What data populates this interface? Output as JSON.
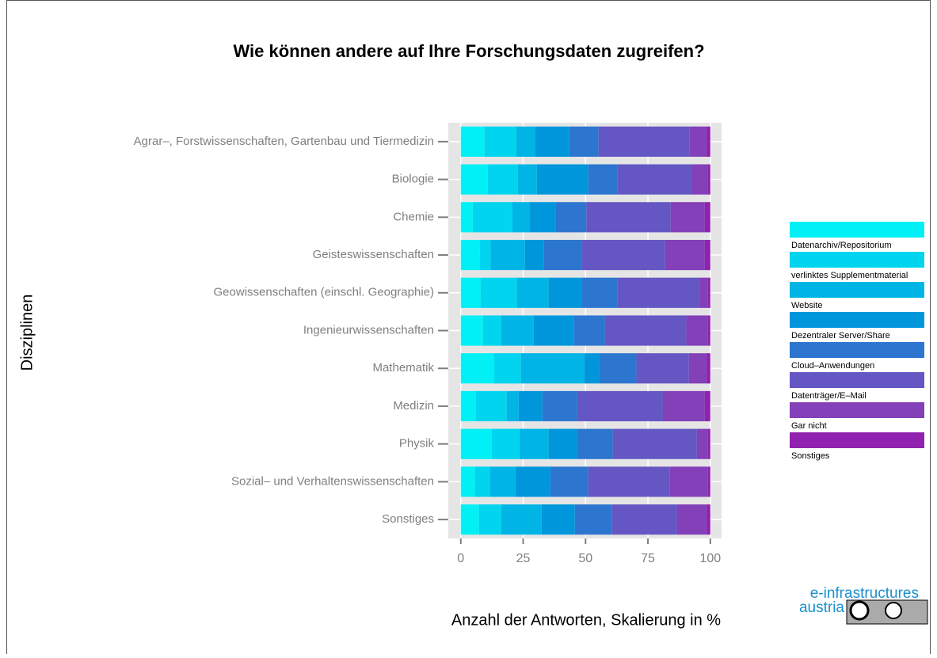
{
  "chart_data": {
    "type": "stacked_bar_horizontal",
    "title": "Wie können andere auf Ihre Forschungsdaten zugreifen?",
    "x_label": "Anzahl der Antworten, Skalierung in %",
    "y_label": "Disziplinen",
    "categories": [
      "Agrar–, Forstwissenschaften, Gartenbau und Tiermedizin",
      "Biologie",
      "Chemie",
      "Geisteswissenschaften",
      "Geowissenschaften (einschl. Geographie)",
      "Ingenieurwissenschaften",
      "Mathematik",
      "Medizin",
      "Physik",
      "Sozial– und Verhaltenswissenschaften",
      "Sonstiges"
    ],
    "series": [
      {
        "name": "Datenarchiv/Repositorium",
        "color": "#00f0f5",
        "values": [
          9.5,
          10.8,
          4.8,
          7.6,
          7.9,
          8.9,
          13.3,
          6.0,
          12.4,
          5.7,
          7.3
        ]
      },
      {
        "name": "verlinktes Supplementmaterial",
        "color": "#00d4ef",
        "values": [
          12.7,
          12.1,
          15.9,
          4.4,
          14.6,
          7.3,
          10.8,
          12.4,
          11.1,
          6.0,
          8.9
        ]
      },
      {
        "name": "Website",
        "color": "#00b5e5",
        "values": [
          7.6,
          7.6,
          7.0,
          13.7,
          12.7,
          13.0,
          25.4,
          4.8,
          11.7,
          10.2,
          16.2
        ]
      },
      {
        "name": "Dezentraler Server/Share",
        "color": "#0096dc",
        "values": [
          13.7,
          20.6,
          10.2,
          7.6,
          13.3,
          16.2,
          6.0,
          9.5,
          11.4,
          14.0,
          13.3
        ]
      },
      {
        "name": "Cloud–Anwendungen",
        "color": "#2c76d0",
        "values": [
          11.7,
          11.7,
          12.4,
          15.2,
          14.3,
          12.4,
          14.9,
          14.0,
          14.3,
          15.2,
          14.9
        ]
      },
      {
        "name": "Datenträger/E–Mail",
        "color": "#6457c4",
        "values": [
          36.5,
          29.8,
          33.8,
          33.4,
          32.7,
          32.6,
          21.0,
          34.3,
          33.7,
          32.7,
          26.1
        ]
      },
      {
        "name": "Gar nicht",
        "color": "#8340b8",
        "values": [
          6.7,
          6.3,
          13.7,
          15.9,
          3.5,
          8.6,
          7.0,
          16.8,
          4.4,
          15.2,
          11.7
        ]
      },
      {
        "name": "Sonstiges",
        "color": "#9122b0",
        "values": [
          1.6,
          1.1,
          2.2,
          2.2,
          1.0,
          1.0,
          1.6,
          2.2,
          1.0,
          1.0,
          1.6
        ]
      }
    ],
    "xlim": [
      -5,
      104.5
    ],
    "xticks": [
      0,
      25,
      50,
      75,
      100
    ],
    "grid": true,
    "legend": "right"
  },
  "logo": {
    "line1": "e-infrastructures",
    "line2": "austria"
  }
}
